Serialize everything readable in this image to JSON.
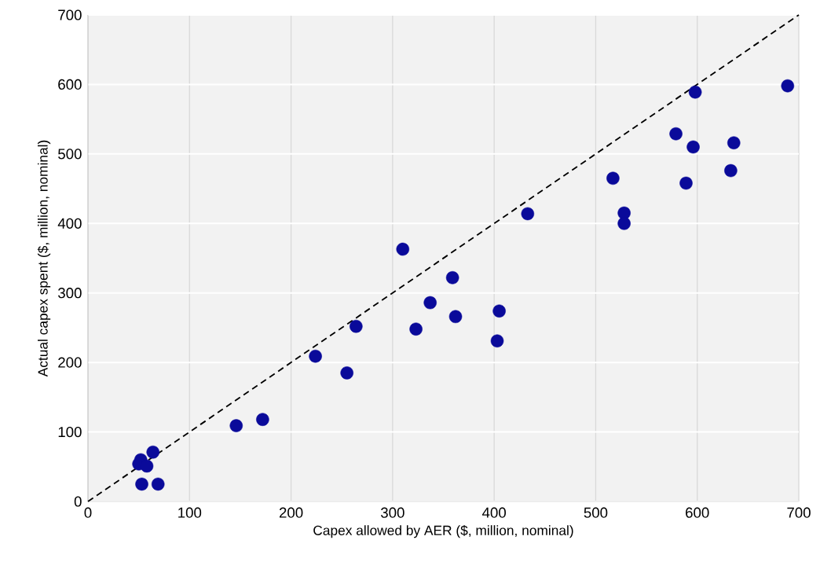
{
  "chart_data": {
    "type": "scatter",
    "xlabel": "Capex allowed by AER ($, million, nominal)",
    "ylabel": "Actual capex spent ($, million, nominal)",
    "xlim": [
      0,
      700
    ],
    "ylim": [
      0,
      700
    ],
    "xticks": [
      0,
      100,
      200,
      300,
      400,
      500,
      600,
      700
    ],
    "yticks": [
      0,
      100,
      200,
      300,
      400,
      500,
      600,
      700
    ],
    "grid": true,
    "marker": "circle",
    "series": [
      {
        "color": "#0a0a9a",
        "x": [
          52,
          50,
          58,
          64,
          53,
          69,
          146,
          172,
          224,
          255,
          264,
          323,
          337,
          362,
          405,
          403,
          310,
          359,
          433,
          689,
          598,
          579,
          596,
          636,
          589,
          633,
          517,
          528,
          528
        ],
        "values": [
          60,
          54,
          51,
          71,
          25,
          25,
          109,
          118,
          209,
          185,
          252,
          248,
          286,
          266,
          274,
          231,
          363,
          322,
          414,
          598,
          589,
          529,
          510,
          516,
          458,
          476,
          465,
          415,
          400
        ]
      },
      {
        "type": "line",
        "color": "#000000",
        "line_style": "dashed",
        "marker": "none",
        "x": [
          0,
          700
        ],
        "values": [
          0,
          700
        ]
      }
    ]
  }
}
